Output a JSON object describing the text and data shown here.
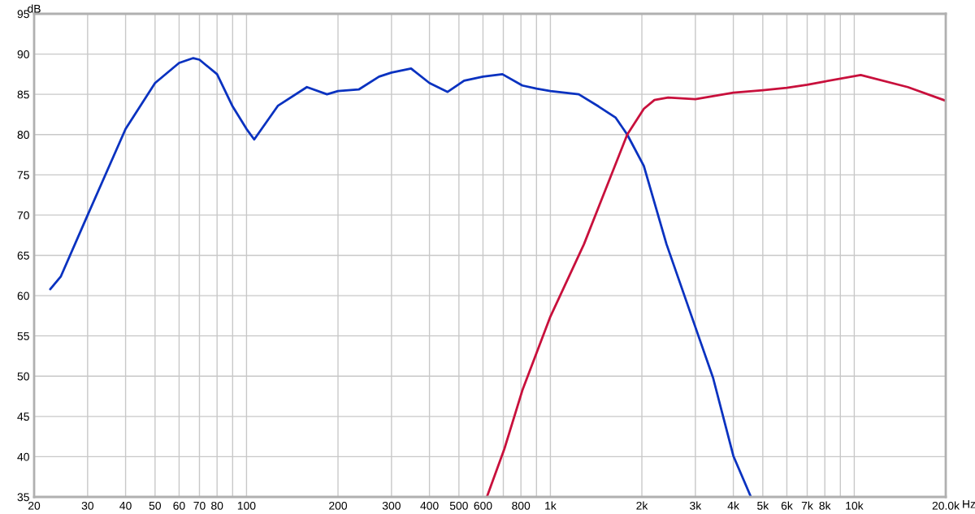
{
  "chart_data": {
    "type": "line",
    "xlabel": "Hz",
    "ylabel": "dB",
    "log": "x",
    "grid": true,
    "marker": "none",
    "line_style": "solid",
    "xlim": [
      20,
      20000
    ],
    "ylim": [
      35,
      95
    ],
    "xticks": [
      20,
      30,
      40,
      50,
      60,
      70,
      80,
      {
        "value": 90,
        "label": null
      },
      100,
      200,
      300,
      400,
      500,
      600,
      {
        "value": 700,
        "label": null
      },
      800,
      {
        "value": 900,
        "label": null
      },
      {
        "value": 1000,
        "label": "1k"
      },
      {
        "value": 2000,
        "label": "2k"
      },
      {
        "value": 3000,
        "label": "3k"
      },
      {
        "value": 4000,
        "label": "4k"
      },
      {
        "value": 5000,
        "label": "5k"
      },
      {
        "value": 6000,
        "label": "6k"
      },
      {
        "value": 7000,
        "label": "7k"
      },
      {
        "value": 8000,
        "label": "8k"
      },
      {
        "value": 9000,
        "label": null
      },
      {
        "value": 10000,
        "label": "10k"
      },
      {
        "value": 20000,
        "label": "20.0k"
      }
    ],
    "yticks": [
      35,
      40,
      45,
      50,
      55,
      60,
      65,
      70,
      75,
      80,
      85,
      90,
      95
    ],
    "series": [
      {
        "color": "#0a32c0",
        "x": [
          22.6,
          24.5,
          30,
          40,
          50,
          60,
          66.8,
          70,
          80,
          90,
          100,
          106,
          127,
          158,
          184,
          200,
          234,
          273,
          300,
          348,
          400,
          459,
          520,
          600,
          695,
          808,
          900,
          1000,
          1240,
          1440,
          1640,
          1790,
          2030,
          2410,
          3070,
          3430,
          4000,
          4570
        ],
        "values": [
          60.8,
          62.4,
          70.0,
          80.7,
          86.4,
          88.9,
          89.5,
          89.3,
          87.5,
          83.5,
          80.7,
          79.4,
          83.6,
          85.9,
          85.0,
          85.4,
          85.6,
          87.2,
          87.7,
          88.2,
          86.4,
          85.3,
          86.7,
          87.2,
          87.5,
          86.1,
          85.7,
          85.4,
          85.0,
          83.5,
          82.1,
          80.0,
          76.1,
          66.4,
          55.0,
          49.8,
          40.1,
          35.0
        ]
      },
      {
        "color": "#c8103c",
        "x": [
          618,
          706,
          808,
          1000,
          1290,
          1790,
          2030,
          2200,
          2440,
          3000,
          4000,
          5000,
          6000,
          7000,
          8000,
          10500,
          15000,
          20000
        ],
        "values": [
          35.0,
          41.0,
          48.2,
          57.4,
          66.4,
          80.0,
          83.2,
          84.3,
          84.6,
          84.4,
          85.2,
          85.5,
          85.8,
          86.2,
          86.6,
          87.4,
          85.9,
          84.2
        ]
      }
    ]
  }
}
